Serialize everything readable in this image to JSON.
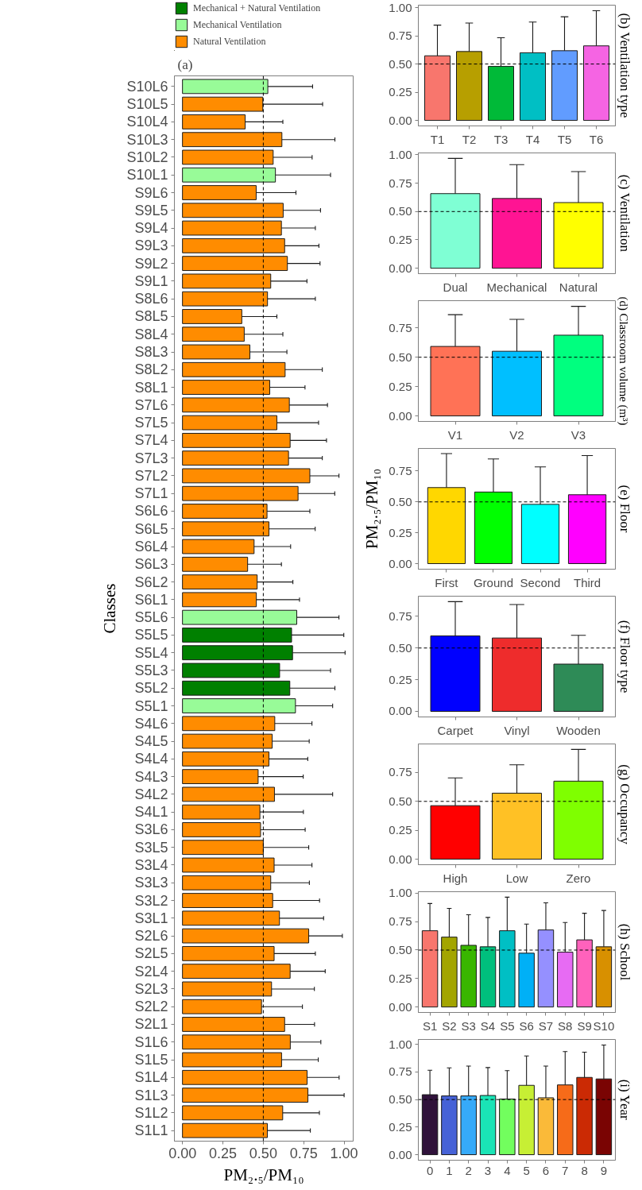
{
  "chart_data": [
    {
      "type": "bar",
      "title": "(a)",
      "xlabel": "PM₂.₅/PM₁₀",
      "ylabel": "Classes",
      "orientation": "horizontal",
      "stacked": true,
      "legend": "top",
      "categories": [
        "S10L6",
        "S10L5",
        "S10L4",
        "S10L3",
        "S10L2",
        "S10L1",
        "S9L6",
        "S9L5",
        "S9L4",
        "S9L3",
        "S9L2",
        "S9L1",
        "S8L6",
        "S8L5",
        "S8L4",
        "S8L3",
        "S8L2",
        "S8L1",
        "S7L6",
        "S7L5",
        "S7L4",
        "S7L3",
        "S7L2",
        "S7L1",
        "S6L6",
        "S6L5",
        "S6L4",
        "S6L3",
        "S6L2",
        "S6L1",
        "S5L6",
        "S5L5",
        "S5L4",
        "S5L3",
        "S5L2",
        "S5L1",
        "S4L6",
        "S4L5",
        "S4L4",
        "S4L3",
        "S4L2",
        "S4L1",
        "S3L6",
        "S3L5",
        "S3L4",
        "S3L3",
        "S3L2",
        "S3L1",
        "S2L6",
        "S2L5",
        "S2L4",
        "S2L3",
        "S2L2",
        "S2L1",
        "S1L6",
        "S1L5",
        "S1L4",
        "S1L3",
        "S1L2",
        "S1L1"
      ],
      "series": [
        {
          "name": "Mechanical + Natural Ventilation",
          "color": "#008000",
          "values": [
            null,
            null,
            null,
            null,
            null,
            null,
            null,
            null,
            null,
            null,
            null,
            null,
            null,
            null,
            null,
            null,
            null,
            null,
            null,
            null,
            null,
            null,
            null,
            null,
            null,
            null,
            null,
            null,
            null,
            null,
            null,
            0.675,
            0.681,
            0.601,
            0.664,
            null,
            null,
            null,
            null,
            null,
            null,
            null,
            null,
            null,
            null,
            null,
            null,
            null,
            null,
            null,
            null,
            null,
            null,
            null,
            null,
            null,
            null,
            null,
            null,
            null
          ],
          "errors": [
            null,
            null,
            null,
            null,
            null,
            null,
            null,
            null,
            null,
            null,
            null,
            null,
            null,
            null,
            null,
            null,
            null,
            null,
            null,
            null,
            null,
            null,
            null,
            null,
            null,
            null,
            null,
            null,
            null,
            null,
            null,
            [
              0.675,
              0.998
            ],
            [
              0.681,
              1.006
            ],
            [
              0.601,
              0.916
            ],
            [
              0.664,
              0.943
            ],
            null,
            null,
            null,
            null,
            null,
            null,
            null,
            null,
            null,
            null,
            null,
            null,
            null,
            null,
            null,
            null,
            null,
            null,
            null,
            null,
            null,
            null,
            null,
            null,
            null
          ]
        },
        {
          "name": "Mechanical Ventilation",
          "color": "#98fb98",
          "values": [
            0.528,
            null,
            null,
            null,
            null,
            0.575,
            null,
            null,
            null,
            null,
            null,
            null,
            null,
            null,
            null,
            null,
            null,
            null,
            null,
            null,
            null,
            null,
            null,
            null,
            null,
            null,
            null,
            null,
            null,
            null,
            0.707,
            null,
            null,
            null,
            null,
            0.699,
            null,
            null,
            null,
            null,
            null,
            null,
            null,
            null,
            null,
            null,
            null,
            null,
            null,
            null,
            null,
            null,
            null,
            null,
            null,
            null,
            null,
            null,
            null,
            null
          ],
          "errors": [
            [
              0.528,
              0.805
            ],
            null,
            null,
            null,
            null,
            [
              0.575,
              0.916
            ],
            null,
            null,
            null,
            null,
            null,
            null,
            null,
            null,
            null,
            null,
            null,
            null,
            null,
            null,
            null,
            null,
            null,
            null,
            null,
            null,
            null,
            null,
            null,
            null,
            [
              0.707,
              0.968
            ],
            null,
            null,
            null,
            null,
            [
              0.699,
              0.929
            ],
            null,
            null,
            null,
            null,
            null,
            null,
            null,
            null,
            null,
            null,
            null,
            null,
            null,
            null,
            null,
            null,
            null,
            null,
            null,
            null,
            null,
            null,
            null,
            null
          ]
        },
        {
          "name": "Natural Ventilation",
          "color": "#ff8c00",
          "values": [
            null,
            0.497,
            0.388,
            0.615,
            0.561,
            null,
            0.456,
            0.623,
            0.612,
            0.632,
            0.649,
            0.546,
            0.526,
            0.367,
            0.382,
            0.417,
            0.635,
            0.54,
            0.661,
            0.584,
            0.666,
            0.656,
            0.788,
            0.715,
            0.523,
            0.535,
            0.443,
            0.403,
            0.462,
            0.457,
            null,
            null,
            null,
            null,
            null,
            null,
            0.571,
            0.555,
            0.535,
            0.468,
            0.569,
            0.479,
            0.483,
            0.5,
            0.567,
            0.546,
            0.558,
            0.6,
            0.781,
            0.567,
            0.666,
            0.551,
            0.489,
            0.632,
            0.667,
            0.613,
            0.771,
            0.776,
            0.62,
            0.525
          ],
          "errors": [
            null,
            [
              0.497,
              0.867
            ],
            [
              0.388,
              0.621
            ],
            [
              0.615,
              0.943
            ],
            [
              0.561,
              0.802
            ],
            null,
            [
              0.456,
              0.702
            ],
            [
              0.623,
              0.854
            ],
            [
              0.612,
              0.822
            ],
            [
              0.632,
              0.844
            ],
            [
              0.649,
              0.851
            ],
            [
              0.546,
              0.77
            ],
            [
              0.526,
              0.822
            ],
            [
              0.367,
              0.584
            ],
            [
              0.382,
              0.621
            ],
            [
              0.417,
              0.646
            ],
            [
              0.635,
              0.865
            ],
            [
              0.54,
              0.758
            ],
            [
              0.661,
              0.897
            ],
            [
              0.584,
              0.842
            ],
            [
              0.666,
              0.891
            ],
            [
              0.656,
              0.865
            ],
            [
              0.788,
              0.968
            ],
            [
              0.715,
              0.942
            ],
            [
              0.523,
              0.788
            ],
            [
              0.535,
              0.821
            ],
            [
              0.443,
              0.669
            ],
            [
              0.403,
              0.612
            ],
            [
              0.462,
              0.683
            ],
            [
              0.457,
              0.724
            ],
            null,
            null,
            null,
            null,
            null,
            null,
            [
              0.571,
              0.801
            ],
            [
              0.555,
              0.784
            ],
            [
              0.535,
              0.775
            ],
            [
              0.468,
              0.747
            ],
            [
              0.569,
              0.929
            ],
            [
              0.479,
              0.748
            ],
            [
              0.483,
              0.759
            ],
            [
              0.5,
              0.781
            ],
            [
              0.567,
              0.801
            ],
            [
              0.546,
              0.785
            ],
            [
              0.558,
              0.848
            ],
            [
              0.6,
              0.873
            ],
            [
              0.781,
              0.989
            ],
            [
              0.567,
              0.822
            ],
            [
              0.666,
              0.883
            ],
            [
              0.551,
              0.816
            ],
            [
              0.489,
              0.742
            ],
            [
              0.632,
              0.817
            ],
            [
              0.667,
              0.856
            ],
            [
              0.613,
              0.84
            ],
            [
              0.771,
              0.969
            ],
            [
              0.776,
              1.0
            ],
            [
              0.62,
              0.847
            ],
            [
              0.525,
              0.791
            ]
          ]
        }
      ],
      "xlim": [
        -0.05,
        1.056
      ],
      "xticks": [
        {
          "value": 0,
          "label": "0.00"
        },
        {
          "value": 0.25,
          "label": "0.25"
        },
        {
          "value": 0.5,
          "label": "0.50"
        },
        {
          "value": 0.75,
          "label": "0.75"
        },
        {
          "value": 1,
          "label": "1.00"
        }
      ],
      "ref_lines": [
        {
          "axis": "x",
          "value": 0.5,
          "line_style": "dashed"
        }
      ]
    },
    {
      "type": "bar",
      "title": "(b) Ventilation type",
      "categories": [
        "T1",
        "T2",
        "T3",
        "T4",
        "T5",
        "T6"
      ],
      "values": [
        0.573,
        0.611,
        0.479,
        0.6,
        0.618,
        0.661
      ],
      "colors": [
        "#f8766d",
        "#b79f00",
        "#00ba38",
        "#00bfc4",
        "#619cff",
        "#f564e3"
      ],
      "errors": [
        [
          0.573,
          0.845
        ],
        [
          0.611,
          0.863
        ],
        [
          0.479,
          0.733
        ],
        [
          0.6,
          0.872
        ],
        [
          0.618,
          0.919
        ],
        [
          0.661,
          0.973
        ]
      ],
      "ylim": [
        -0.049,
        1.022
      ],
      "yticks": [
        {
          "value": 0,
          "label": "0.00"
        },
        {
          "value": 0.25,
          "label": "0.25"
        },
        {
          "value": 0.5,
          "label": "0.50"
        },
        {
          "value": 0.75,
          "label": "0.75"
        },
        {
          "value": 1,
          "label": "1.00"
        }
      ],
      "ref_lines": [
        {
          "axis": "y",
          "value": 0.5,
          "line_style": "dashed"
        }
      ]
    },
    {
      "type": "bar",
      "title": "(c) Ventilation",
      "categories": [
        "Dual",
        "Mechanical",
        "Natural"
      ],
      "values": [
        0.658,
        0.615,
        0.579
      ],
      "colors": [
        "#7fffd4",
        "#ff1493",
        "#ffff00"
      ],
      "errors": [
        [
          0.658,
          0.969
        ],
        [
          0.615,
          0.914
        ],
        [
          0.579,
          0.852
        ]
      ],
      "ylim": [
        -0.048,
        1.017
      ],
      "yticks": [
        {
          "value": 0,
          "label": "0.00"
        },
        {
          "value": 0.25,
          "label": "0.25"
        },
        {
          "value": 0.5,
          "label": "0.50"
        },
        {
          "value": 0.75,
          "label": "0.75"
        },
        {
          "value": 1,
          "label": "1.00"
        }
      ],
      "ref_lines": [
        {
          "axis": "y",
          "value": 0.5,
          "line_style": "dashed"
        }
      ]
    },
    {
      "type": "bar",
      "title": "(d) Classroom volume (m³)",
      "categories": [
        "V1",
        "V2",
        "V3"
      ],
      "values": [
        0.592,
        0.551,
        0.688
      ],
      "colors": [
        "#ff7256",
        "#00bfff",
        "#00ff7f"
      ],
      "errors": [
        [
          0.592,
          0.863
        ],
        [
          0.551,
          0.823
        ],
        [
          0.688,
          0.934
        ]
      ],
      "ylim": [
        -0.047,
        0.982
      ],
      "yticks": [
        {
          "value": 0,
          "label": "0.00"
        },
        {
          "value": 0.25,
          "label": "0.25"
        },
        {
          "value": 0.5,
          "label": "0.50"
        },
        {
          "value": 0.75,
          "label": "0.75"
        }
      ],
      "ref_lines": [
        {
          "axis": "y",
          "value": 0.5,
          "line_style": "dashed"
        }
      ]
    },
    {
      "type": "bar",
      "title": "(e) Floor",
      "ylabel": "PM₂.₅/PM₁₀",
      "categories": [
        "First",
        "Ground",
        "Second",
        "Third"
      ],
      "values": [
        0.616,
        0.58,
        0.48,
        0.558
      ],
      "colors": [
        "#ffd700",
        "#00ff00",
        "#00ffff",
        "#ff00ff"
      ],
      "errors": [
        [
          0.616,
          0.891
        ],
        [
          0.58,
          0.848
        ],
        [
          0.48,
          0.783
        ],
        [
          0.558,
          0.875
        ]
      ],
      "ylim": [
        -0.045,
        0.933
      ],
      "yticks": [
        {
          "value": 0,
          "label": "0.00"
        },
        {
          "value": 0.25,
          "label": "0.25"
        },
        {
          "value": 0.5,
          "label": "0.50"
        },
        {
          "value": 0.75,
          "label": "0.75"
        }
      ],
      "ref_lines": [
        {
          "axis": "y",
          "value": 0.5,
          "line_style": "dashed"
        }
      ]
    },
    {
      "type": "bar",
      "title": "(f) Floor type",
      "categories": [
        "Carpet",
        "Vinyl",
        "Wooden"
      ],
      "values": [
        0.596,
        0.579,
        0.373
      ],
      "colors": [
        "#0000ff",
        "#ee2c2c",
        "#2e8b57"
      ],
      "errors": [
        [
          0.596,
          0.866
        ],
        [
          0.579,
          0.843
        ],
        [
          0.373,
          0.6
        ]
      ],
      "ylim": [
        -0.044,
        0.909
      ],
      "yticks": [
        {
          "value": 0,
          "label": "0.00"
        },
        {
          "value": 0.25,
          "label": "0.25"
        },
        {
          "value": 0.5,
          "label": "0.50"
        },
        {
          "value": 0.75,
          "label": "0.75"
        }
      ],
      "ref_lines": [
        {
          "axis": "y",
          "value": 0.5,
          "line_style": "dashed"
        }
      ]
    },
    {
      "type": "bar",
      "title": "(g) Occupancy",
      "categories": [
        "High",
        "Low",
        "Zero"
      ],
      "values": [
        0.463,
        0.571,
        0.675
      ],
      "colors": [
        "#ff0000",
        "#ffc125",
        "#7fff00"
      ],
      "errors": [
        [
          0.463,
          0.703
        ],
        [
          0.571,
          0.817
        ],
        [
          0.675,
          0.95
        ]
      ],
      "ylim": [
        -0.048,
        0.997
      ],
      "yticks": [
        {
          "value": 0,
          "label": "0.00"
        },
        {
          "value": 0.25,
          "label": "0.25"
        },
        {
          "value": 0.5,
          "label": "0.50"
        },
        {
          "value": 0.75,
          "label": "0.75"
        }
      ],
      "ref_lines": [
        {
          "axis": "y",
          "value": 0.5,
          "line_style": "dashed"
        }
      ]
    },
    {
      "type": "bar",
      "title": "(h) School",
      "categories": [
        "S1",
        "S2",
        "S3",
        "S4",
        "S5",
        "S6",
        "S7",
        "S8",
        "S9",
        "S10"
      ],
      "values": [
        0.67,
        0.614,
        0.542,
        0.529,
        0.67,
        0.473,
        0.677,
        0.482,
        0.59,
        0.529
      ],
      "colors": [
        "#f8766d",
        "#a3a500",
        "#39b600",
        "#00bf7d",
        "#00bfc4",
        "#00b0f6",
        "#9590ff",
        "#e76bf3",
        "#ff62bc",
        "#d89000"
      ],
      "errors": [
        [
          0.67,
          0.909
        ],
        [
          0.614,
          0.866
        ],
        [
          0.542,
          0.811
        ],
        [
          0.529,
          0.787
        ],
        [
          0.67,
          0.965
        ],
        [
          0.473,
          0.729
        ],
        [
          0.677,
          0.915
        ],
        [
          0.482,
          0.742
        ],
        [
          0.59,
          0.824
        ],
        [
          0.529,
          0.848
        ]
      ],
      "ylim": [
        -0.048,
        1.013
      ],
      "yticks": [
        {
          "value": 0,
          "label": "0.00"
        },
        {
          "value": 0.25,
          "label": "0.25"
        },
        {
          "value": 0.5,
          "label": "0.50"
        },
        {
          "value": 0.75,
          "label": "0.75"
        },
        {
          "value": 1,
          "label": "1.00"
        }
      ],
      "ref_lines": [
        {
          "axis": "y",
          "value": 0.5,
          "line_style": "dashed"
        }
      ]
    },
    {
      "type": "bar",
      "title": "(i) Year",
      "categories": [
        "0",
        "1",
        "2",
        "3",
        "4",
        "5",
        "6",
        "7",
        "8",
        "9"
      ],
      "values": [
        0.544,
        0.533,
        0.533,
        0.537,
        0.505,
        0.629,
        0.516,
        0.633,
        0.701,
        0.687
      ],
      "colors": [
        "#30123b",
        "#4662d7",
        "#36aaf9",
        "#1ae4b6",
        "#72fe5e",
        "#c7ef34",
        "#faba39",
        "#f66b19",
        "#cb2a04",
        "#7a0403"
      ],
      "errors": [
        [
          0.544,
          0.766
        ],
        [
          0.533,
          0.787
        ],
        [
          0.533,
          0.804
        ],
        [
          0.537,
          0.79
        ],
        [
          0.505,
          0.762
        ],
        [
          0.629,
          0.895
        ],
        [
          0.516,
          0.804
        ],
        [
          0.633,
          0.935
        ],
        [
          0.701,
          0.93
        ],
        [
          0.687,
          0.995
        ]
      ],
      "ylim": [
        -0.05,
        1.045
      ],
      "yticks": [
        {
          "value": 0,
          "label": "0.00"
        },
        {
          "value": 0.25,
          "label": "0.25"
        },
        {
          "value": 0.5,
          "label": "0.50"
        },
        {
          "value": 0.75,
          "label": "0.75"
        },
        {
          "value": 1,
          "label": "1.00"
        }
      ],
      "ref_lines": [
        {
          "axis": "y",
          "value": 0.5,
          "line_style": "dashed"
        }
      ]
    }
  ]
}
